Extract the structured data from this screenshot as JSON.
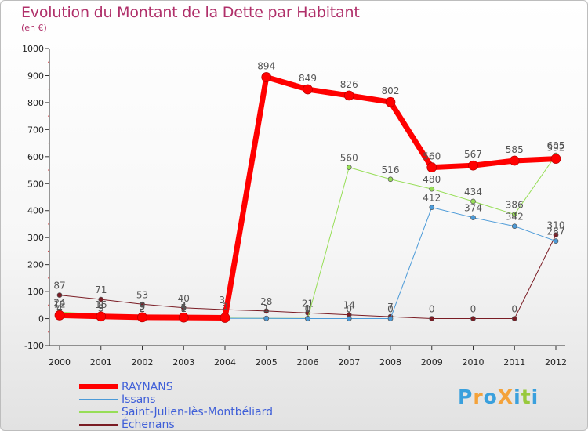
{
  "chart_data": {
    "type": "line",
    "title": "Evolution du Montant de la Dette par Habitant",
    "unit_label": "(en €)",
    "x": [
      "2000",
      "2001",
      "2002",
      "2003",
      "2004",
      "2005",
      "2006",
      "2007",
      "2008",
      "2009",
      "2010",
      "2011",
      "2012"
    ],
    "ylim": [
      -100,
      1000
    ],
    "yticks": [
      -100,
      0,
      100,
      200,
      300,
      400,
      500,
      600,
      700,
      800,
      900,
      1000
    ],
    "series": [
      {
        "name": "Échenans",
        "color": "#7a1c24",
        "width": 1,
        "values": [
          87,
          71,
          53,
          40,
          33,
          28,
          21,
          14,
          7,
          0,
          0,
          0,
          310
        ],
        "labels": [
          "87",
          "71",
          "53",
          "40",
          "33",
          "28",
          "21",
          "14",
          "7",
          "0",
          "0",
          "0",
          "310"
        ]
      },
      {
        "name": "Saint-Julien-lès-Montbéliard",
        "color": "#97de57",
        "width": 1,
        "values": [
          24,
          16,
          9,
          5,
          2,
          1,
          1,
          560,
          516,
          480,
          434,
          386,
          605
        ],
        "labels": [
          "24",
          "16",
          "9",
          "5",
          "2",
          "1",
          "1",
          "560",
          "516",
          "480",
          "434",
          "386",
          "605"
        ]
      },
      {
        "name": "Issans",
        "color": "#4b9ad8",
        "width": 1,
        "values": [
          4,
          3,
          2,
          1,
          1,
          1,
          0,
          0,
          0,
          412,
          374,
          342,
          287
        ],
        "labels": [
          "4",
          "3",
          "2",
          "1",
          "1",
          "1",
          "0",
          "0",
          "0",
          "412",
          "374",
          "342",
          "287"
        ]
      },
      {
        "name": "RAYNANS",
        "color": "#ff0000",
        "width": 7,
        "values": [
          12,
          8,
          5,
          4,
          3,
          894,
          849,
          826,
          802,
          560,
          567,
          585,
          592
        ],
        "labels": [
          "12",
          "8",
          "5",
          "4",
          "3",
          "894",
          "849",
          "826",
          "802",
          "560",
          "567",
          "585",
          "592"
        ]
      }
    ],
    "legend": [
      "RAYNANS",
      "Issans",
      "Saint-Julien-lès-Montbéliard",
      "Échenans"
    ],
    "grid": false,
    "legend_position": "bottom-left"
  },
  "brand": {
    "text": "ProXiti",
    "letters": [
      "P",
      "r",
      "o",
      "X",
      "i",
      "t",
      "i"
    ],
    "colors": [
      "#3aa0dd",
      "#f4a23a",
      "#3aa0dd",
      "#f4a23a",
      "#3aa0dd",
      "#98c93c",
      "#3aa0dd"
    ]
  }
}
